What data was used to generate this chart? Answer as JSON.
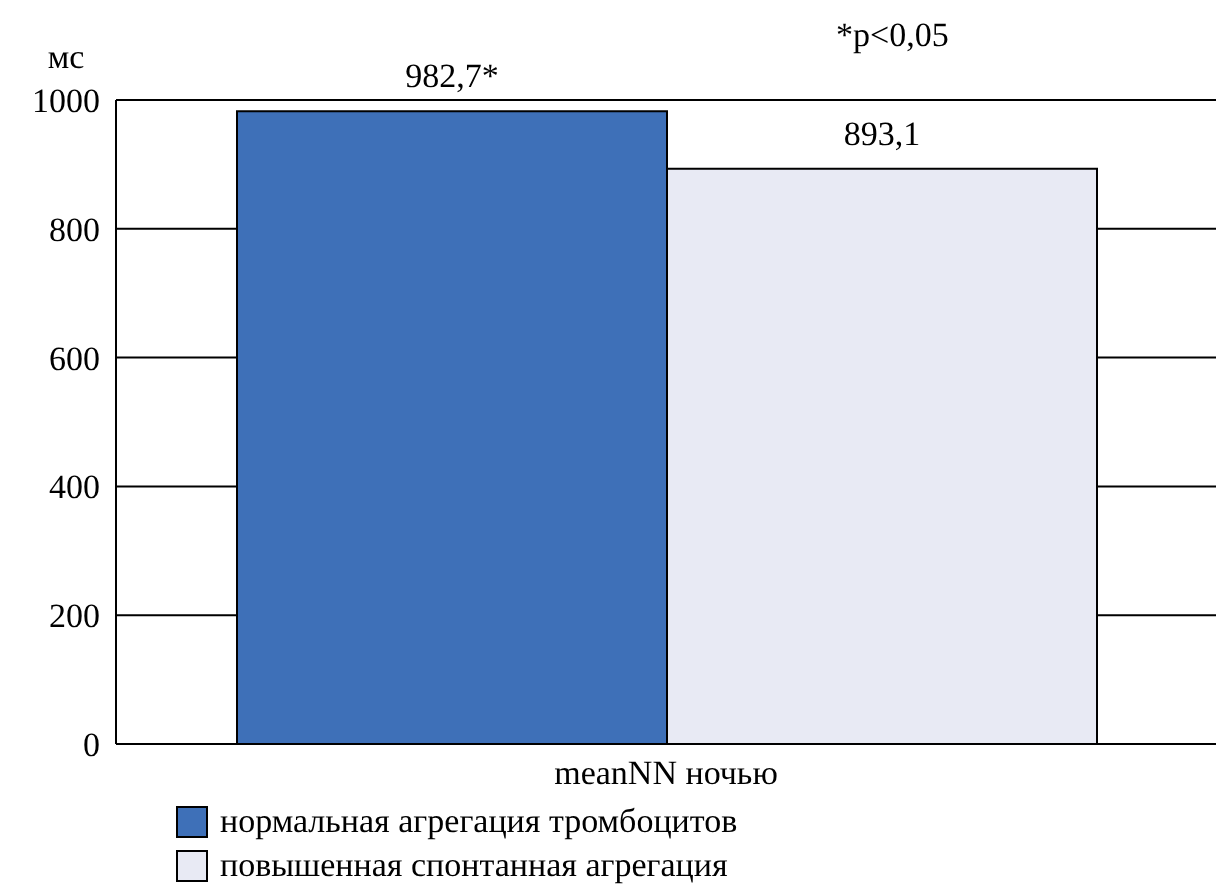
{
  "chart_data": {
    "type": "bar",
    "ylabel": "мс",
    "categories": [
      "meanNN ночью"
    ],
    "series": [
      {
        "name": "нормальная агрегация тромбоцитов",
        "color": "#3e70b8",
        "values": [
          982.7
        ],
        "value_labels": [
          "982,7*"
        ]
      },
      {
        "name": "повышенная спонтанная агрегация",
        "color": "#e8eaf4",
        "values": [
          893.1
        ],
        "value_labels": [
          "893,1"
        ]
      }
    ],
    "annotations": [
      "*p<0,05"
    ],
    "ylim": [
      0,
      1000
    ],
    "yticks": [
      0,
      200,
      400,
      600,
      800,
      1000
    ],
    "grid": "y",
    "legend": "bottom left"
  }
}
